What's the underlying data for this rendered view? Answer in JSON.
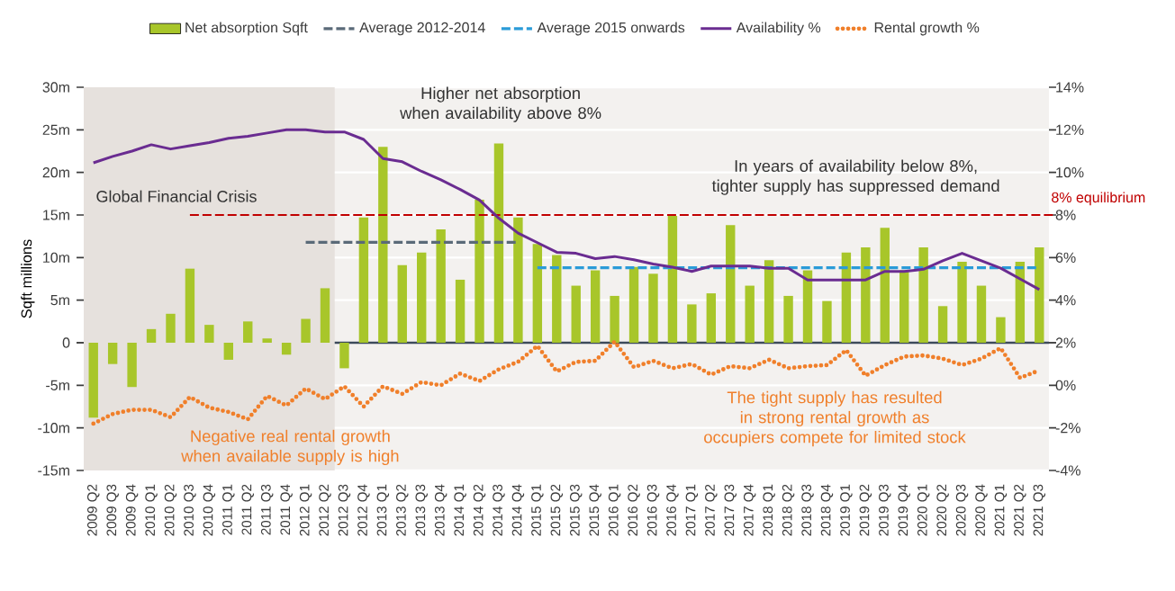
{
  "chart_data": {
    "type": "bar",
    "categories": [
      "2009 Q2",
      "2009 Q3",
      "2009 Q4",
      "2010 Q1",
      "2010 Q2",
      "2010 Q3",
      "2010 Q4",
      "2011 Q1",
      "2011 Q2",
      "2011 Q3",
      "2011 Q4",
      "2012 Q1",
      "2012 Q2",
      "2012 Q3",
      "2012 Q4",
      "2013 Q1",
      "2013 Q2",
      "2013 Q3",
      "2013 Q4",
      "2014 Q1",
      "2014 Q2",
      "2014 Q3",
      "2014 Q4",
      "2015 Q1",
      "2015 Q2",
      "2015 Q3",
      "2015 Q4",
      "2016 Q1",
      "2016 Q2",
      "2016 Q3",
      "2016 Q4",
      "2017 Q1",
      "2017 Q2",
      "2017 Q3",
      "2017 Q4",
      "2018 Q1",
      "2018 Q2",
      "2018 Q3",
      "2018 Q4",
      "2019 Q1",
      "2019 Q2",
      "2019 Q3",
      "2019 Q4",
      "2020 Q1",
      "2020 Q2",
      "2020 Q3",
      "2020 Q4",
      "2021 Q1",
      "2021 Q2",
      "2021 Q3"
    ],
    "series": [
      {
        "name": "Net absorption Sqft",
        "color": "#a8c62a",
        "values": [
          -8.8,
          -2.5,
          -5.2,
          1.6,
          3.4,
          8.7,
          2.1,
          -2.0,
          2.5,
          0.5,
          -1.4,
          2.8,
          6.4,
          -3.0,
          14.7,
          23.0,
          9.1,
          10.6,
          13.3,
          7.4,
          16.8,
          23.4,
          14.7,
          11.6,
          10.3,
          6.7,
          8.5,
          5.5,
          8.9,
          8.1,
          14.9,
          4.5,
          5.8,
          13.8,
          6.7,
          9.7,
          5.5,
          8.5,
          4.9,
          10.6,
          11.2,
          13.5,
          8.5,
          11.2,
          4.3,
          9.5,
          6.7,
          3.0,
          9.5,
          11.2
        ]
      },
      {
        "name": "Average 2012-2014",
        "type": "line",
        "line_style": "dashed",
        "color": "#5a6a78",
        "values": [
          null,
          null,
          null,
          null,
          null,
          null,
          null,
          null,
          null,
          null,
          null,
          11.8,
          11.8,
          11.8,
          11.8,
          11.8,
          11.8,
          11.8,
          11.8,
          11.8,
          11.8,
          11.8,
          11.8,
          null,
          null,
          null,
          null,
          null,
          null,
          null,
          null,
          null,
          null,
          null,
          null,
          null,
          null,
          null,
          null,
          null,
          null,
          null,
          null,
          null,
          null,
          null,
          null,
          null,
          null,
          null
        ]
      },
      {
        "name": "Average 2015 onwards",
        "type": "line",
        "line_style": "dashed",
        "color": "#2a9bd8",
        "values": [
          null,
          null,
          null,
          null,
          null,
          null,
          null,
          null,
          null,
          null,
          null,
          null,
          null,
          null,
          null,
          null,
          null,
          null,
          null,
          null,
          null,
          null,
          null,
          8.8,
          8.8,
          8.8,
          8.8,
          8.8,
          8.8,
          8.8,
          8.8,
          8.8,
          8.8,
          8.8,
          8.8,
          8.8,
          8.8,
          8.8,
          8.8,
          8.8,
          8.8,
          8.8,
          8.8,
          8.8,
          8.8,
          8.8,
          8.8,
          8.8,
          8.8,
          8.8
        ]
      },
      {
        "name": "Availability %",
        "type": "line",
        "axis": "y2",
        "color": "#6a2c91",
        "values": [
          10.45,
          10.75,
          11.0,
          11.3,
          11.1,
          11.25,
          11.4,
          11.6,
          11.7,
          11.85,
          12.0,
          12.0,
          11.9,
          11.9,
          11.55,
          10.65,
          10.5,
          10.05,
          9.65,
          9.2,
          8.7,
          7.85,
          7.15,
          6.7,
          6.25,
          6.2,
          5.95,
          6.05,
          5.9,
          5.7,
          5.55,
          5.35,
          5.6,
          5.6,
          5.6,
          5.5,
          5.5,
          4.95,
          4.95,
          4.95,
          4.95,
          5.35,
          5.35,
          5.45,
          5.85,
          6.2,
          5.85,
          5.5,
          5.0,
          4.5
        ]
      },
      {
        "name": "Rental growth %",
        "type": "line",
        "axis": "y2",
        "line_style": "dotted",
        "color": "#f07f2a",
        "values": [
          -1.8,
          -1.35,
          -1.15,
          -1.15,
          -1.5,
          -0.55,
          -1.05,
          -1.25,
          -1.6,
          -0.5,
          -0.95,
          -0.15,
          -0.65,
          -0.05,
          -1.0,
          -0.05,
          -0.4,
          0.15,
          0.0,
          0.55,
          0.2,
          0.75,
          1.1,
          1.85,
          0.65,
          1.1,
          1.15,
          2.05,
          0.85,
          1.15,
          0.8,
          1.0,
          0.5,
          0.9,
          0.8,
          1.2,
          0.8,
          0.9,
          0.95,
          1.65,
          0.45,
          0.95,
          1.35,
          1.4,
          1.25,
          0.95,
          1.25,
          1.75,
          0.35,
          0.7
        ]
      }
    ],
    "ylabel": "Sqft millions",
    "ylim": [
      -15,
      30
    ],
    "yticks": [
      {
        "value": -15,
        "label": "-15m"
      },
      {
        "value": -10,
        "label": "-10m"
      },
      {
        "value": -5,
        "label": "-5m"
      },
      0,
      {
        "value": 5,
        "label": "5m"
      },
      {
        "value": 10,
        "label": "10m"
      },
      {
        "value": 15,
        "label": "15m"
      },
      {
        "value": 20,
        "label": "20m"
      },
      {
        "value": 25,
        "label": "25m"
      },
      {
        "value": 30,
        "label": "30m"
      }
    ],
    "y2lim": [
      -4,
      14
    ],
    "y2ticks": [
      {
        "value": -4,
        "label": "-4%"
      },
      {
        "value": -2,
        "label": "-2%"
      },
      {
        "value": 0,
        "label": "0%"
      },
      {
        "value": 2,
        "label": "2%"
      },
      {
        "value": 4,
        "label": "4%"
      },
      {
        "value": 6,
        "label": "6%"
      },
      {
        "value": 8,
        "label": "8%"
      },
      {
        "value": 10,
        "label": "10%"
      },
      {
        "value": 12,
        "label": "12%"
      },
      {
        "value": 14,
        "label": "14%"
      }
    ],
    "ref_lines": [
      {
        "axis": "y2",
        "value": 8,
        "label": "8% equilibrium",
        "color": "#c00000",
        "line_style": "dashed"
      }
    ],
    "bands": [
      {
        "axis": "x",
        "from": "2009 Q2",
        "to": "2012 Q2",
        "label": "Global Financial Crisis",
        "color": "#e6e1dd"
      }
    ],
    "annotations": [
      "Higher net absorption when availability above 8%",
      "In years of availability below 8%, tighter supply has suppressed demand",
      "Negative real rental growth when available supply is high",
      "The tight supply has resulted in strong rental growth as occupiers compete for limited stock"
    ],
    "grid": "y",
    "legend": "top"
  }
}
